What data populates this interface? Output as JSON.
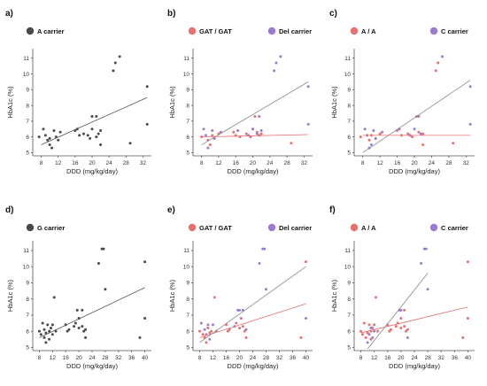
{
  "chart_data": [
    {
      "panel": "a)",
      "type": "scatter",
      "xlabel": "DDD (mg/kg/day)",
      "ylabel": "HbA1c (%)",
      "xlim": [
        6,
        34
      ],
      "ylim": [
        4.8,
        11.6
      ],
      "xticks": [
        8,
        12,
        16,
        20,
        24,
        28,
        32
      ],
      "yticks": [
        5,
        6,
        7,
        8,
        9,
        10,
        11
      ],
      "series": [
        {
          "name": "A carrier",
          "color": "#4a4a4a",
          "points": [
            [
              7.5,
              6.0
            ],
            [
              8.5,
              6.5
            ],
            [
              9,
              6.1
            ],
            [
              9.5,
              5.8
            ],
            [
              10,
              5.5
            ],
            [
              10,
              5.9
            ],
            [
              10.5,
              5.3
            ],
            [
              11,
              6.4
            ],
            [
              11.5,
              6.0
            ],
            [
              12,
              5.8
            ],
            [
              12.5,
              6.3
            ],
            [
              16,
              6.4
            ],
            [
              16.5,
              6.5
            ],
            [
              17,
              6.1
            ],
            [
              18,
              6.2
            ],
            [
              19,
              6.1
            ],
            [
              19.5,
              5.9
            ],
            [
              20,
              6.5
            ],
            [
              20,
              7.3
            ],
            [
              21,
              6.0
            ],
            [
              21,
              7.3
            ],
            [
              21.5,
              6.2
            ],
            [
              22,
              6.4
            ],
            [
              22,
              5.5
            ],
            [
              25,
              10.2
            ],
            [
              25.5,
              10.7
            ],
            [
              26.5,
              11.1
            ],
            [
              29,
              5.6
            ],
            [
              33,
              9.2
            ],
            [
              33,
              6.8
            ]
          ],
          "trend": [
            [
              8,
              5.5
            ],
            [
              33,
              8.5
            ]
          ],
          "trend_color": "#555555"
        }
      ]
    },
    {
      "panel": "b)",
      "type": "scatter",
      "xlabel": "DDD (mg/kg/day)",
      "ylabel": "HbA1c (%)",
      "xlim": [
        6,
        34
      ],
      "ylim": [
        4.8,
        11.6
      ],
      "xticks": [
        8,
        12,
        16,
        20,
        24,
        28,
        32
      ],
      "yticks": [
        5,
        6,
        7,
        8,
        9,
        10,
        11
      ],
      "series": [
        {
          "name": "GAT / GAT",
          "color": "#e8706f",
          "points": [
            [
              8,
              6.0
            ],
            [
              9.5,
              5.8
            ],
            [
              10,
              5.5
            ],
            [
              10.5,
              6.1
            ],
            [
              11,
              5.9
            ],
            [
              12,
              6.2
            ],
            [
              15.5,
              6.3
            ],
            [
              16,
              6.1
            ],
            [
              17,
              6.0
            ],
            [
              18.5,
              6.2
            ],
            [
              19.5,
              6.0
            ],
            [
              20,
              6.5
            ],
            [
              20.5,
              7.3
            ],
            [
              21,
              6.3
            ],
            [
              21.5,
              6.1
            ],
            [
              22,
              6.2
            ],
            [
              29,
              5.6
            ]
          ],
          "trend": [
            [
              8,
              6.0
            ],
            [
              33,
              6.15
            ]
          ],
          "trend_color": "#e8706f"
        },
        {
          "name": "Del carrier",
          "color": "#9b7ad2",
          "points": [
            [
              8.5,
              6.5
            ],
            [
              9,
              6.1
            ],
            [
              9.5,
              5.3
            ],
            [
              10.5,
              6.4
            ],
            [
              11,
              5.9
            ],
            [
              12.5,
              6.3
            ],
            [
              16.5,
              6.4
            ],
            [
              19,
              6.1
            ],
            [
              20,
              6.5
            ],
            [
              21,
              6.2
            ],
            [
              21.5,
              7.3
            ],
            [
              22,
              6.4
            ],
            [
              25,
              10.2
            ],
            [
              25.5,
              10.7
            ],
            [
              26.5,
              11.1
            ],
            [
              33,
              9.2
            ],
            [
              33,
              6.8
            ]
          ],
          "trend": [
            [
              8,
              5.5
            ],
            [
              33,
              9.5
            ]
          ],
          "trend_color": "#888888"
        }
      ]
    },
    {
      "panel": "c)",
      "type": "scatter",
      "xlabel": "DDD (mg/kg/day)",
      "ylabel": "HbA1c (%)",
      "xlim": [
        6,
        34
      ],
      "ylim": [
        4.8,
        11.6
      ],
      "xticks": [
        8,
        12,
        16,
        20,
        24,
        28,
        32
      ],
      "yticks": [
        5,
        6,
        7,
        8,
        9,
        10,
        11
      ],
      "series": [
        {
          "name": "A / A",
          "color": "#e8706f",
          "points": [
            [
              7.5,
              6.0
            ],
            [
              9.5,
              5.8
            ],
            [
              10,
              6.1
            ],
            [
              11,
              5.9
            ],
            [
              12,
              6.2
            ],
            [
              16,
              6.4
            ],
            [
              17,
              6.1
            ],
            [
              18.5,
              6.2
            ],
            [
              19.5,
              6.0
            ],
            [
              20.5,
              7.3
            ],
            [
              21,
              6.3
            ],
            [
              22,
              6.2
            ],
            [
              22,
              5.5
            ],
            [
              25,
              10.2
            ],
            [
              25.5,
              10.7
            ],
            [
              29,
              5.6
            ]
          ],
          "trend": [
            [
              8,
              6.1
            ],
            [
              33,
              6.1
            ]
          ],
          "trend_color": "#e8706f"
        },
        {
          "name": "C carrier",
          "color": "#9b7ad2",
          "points": [
            [
              8.5,
              6.5
            ],
            [
              9,
              6.1
            ],
            [
              9.5,
              5.3
            ],
            [
              10,
              5.5
            ],
            [
              10.5,
              6.4
            ],
            [
              11,
              5.9
            ],
            [
              12.5,
              6.3
            ],
            [
              16.5,
              6.5
            ],
            [
              19,
              6.1
            ],
            [
              20,
              6.5
            ],
            [
              21,
              7.3
            ],
            [
              21.5,
              6.2
            ],
            [
              26.5,
              11.1
            ],
            [
              33,
              9.2
            ],
            [
              33,
              6.8
            ]
          ],
          "trend": [
            [
              8,
              5.0
            ],
            [
              33,
              9.6
            ]
          ],
          "trend_color": "#888888"
        }
      ]
    },
    {
      "panel": "d)",
      "type": "scatter",
      "xlabel": "DDD (mg/kg/day)",
      "ylabel": "HbA1c (%)",
      "xlim": [
        6,
        42
      ],
      "ylim": [
        4.8,
        11.6
      ],
      "xticks": [
        8,
        12,
        16,
        20,
        24,
        28,
        32,
        36,
        40
      ],
      "yticks": [
        5,
        6,
        7,
        8,
        9,
        10,
        11
      ],
      "series": [
        {
          "name": "G carrier",
          "color": "#4a4a4a",
          "points": [
            [
              8,
              6.0
            ],
            [
              8.5,
              5.8
            ],
            [
              9,
              6.5
            ],
            [
              9.5,
              6.1
            ],
            [
              9.5,
              5.6
            ],
            [
              10,
              5.9
            ],
            [
              10,
              5.3
            ],
            [
              10.5,
              6.4
            ],
            [
              11,
              6.0
            ],
            [
              11,
              5.5
            ],
            [
              11.5,
              6.2
            ],
            [
              12,
              5.8
            ],
            [
              12,
              6.4
            ],
            [
              12.5,
              8.1
            ],
            [
              13,
              6.0
            ],
            [
              16,
              6.4
            ],
            [
              16.5,
              6.0
            ],
            [
              17,
              6.1
            ],
            [
              18.5,
              6.3
            ],
            [
              19,
              6.5
            ],
            [
              19.5,
              7.3
            ],
            [
              20,
              6.2
            ],
            [
              20,
              6.8
            ],
            [
              21,
              6.3
            ],
            [
              21,
              7.3
            ],
            [
              21.5,
              6.0
            ],
            [
              22,
              5.6
            ],
            [
              22,
              6.1
            ],
            [
              26,
              10.2
            ],
            [
              27,
              11.1
            ],
            [
              27.5,
              11.1
            ],
            [
              28,
              8.6
            ],
            [
              38.5,
              5.6
            ],
            [
              40,
              10.3
            ],
            [
              40,
              6.8
            ]
          ],
          "trend": [
            [
              8,
              5.6
            ],
            [
              40,
              8.7
            ]
          ],
          "trend_color": "#555555"
        }
      ]
    },
    {
      "panel": "e)",
      "type": "scatter",
      "xlabel": "DDD (mg/kg/day)",
      "ylabel": "HbA1c (%)",
      "xlim": [
        6,
        42
      ],
      "ylim": [
        4.8,
        11.6
      ],
      "xticks": [
        8,
        12,
        16,
        20,
        24,
        28,
        32,
        36,
        40
      ],
      "yticks": [
        5,
        6,
        7,
        8,
        9,
        10,
        11
      ],
      "series": [
        {
          "name": "GAT / GAT",
          "color": "#e8706f",
          "points": [
            [
              8,
              6.0
            ],
            [
              9,
              5.8
            ],
            [
              9.5,
              5.6
            ],
            [
              10,
              5.3
            ],
            [
              10.5,
              6.2
            ],
            [
              11,
              5.9
            ],
            [
              11.5,
              6.0
            ],
            [
              12.5,
              8.1
            ],
            [
              13,
              6.0
            ],
            [
              16,
              6.4
            ],
            [
              16.5,
              6.0
            ],
            [
              17,
              6.1
            ],
            [
              19,
              6.5
            ],
            [
              20,
              6.2
            ],
            [
              20.5,
              6.8
            ],
            [
              21,
              6.3
            ],
            [
              21.5,
              6.0
            ],
            [
              22,
              5.6
            ],
            [
              38.5,
              5.6
            ],
            [
              40,
              10.3
            ]
          ],
          "trend": [
            [
              8,
              5.6
            ],
            [
              40,
              7.7
            ]
          ],
          "trend_color": "#e8706f"
        },
        {
          "name": "Del carrier",
          "color": "#9b7ad2",
          "points": [
            [
              8.5,
              6.5
            ],
            [
              9.5,
              6.1
            ],
            [
              10,
              5.8
            ],
            [
              10.5,
              6.4
            ],
            [
              11,
              5.5
            ],
            [
              12,
              6.4
            ],
            [
              18.5,
              6.3
            ],
            [
              19.5,
              7.3
            ],
            [
              20,
              7.3
            ],
            [
              21,
              7.3
            ],
            [
              22,
              6.1
            ],
            [
              26,
              10.2
            ],
            [
              27,
              11.1
            ],
            [
              27.5,
              11.1
            ],
            [
              28,
              8.6
            ],
            [
              40,
              6.8
            ]
          ],
          "trend": [
            [
              8,
              5.3
            ],
            [
              40,
              10.0
            ]
          ],
          "trend_color": "#888888"
        }
      ]
    },
    {
      "panel": "f)",
      "type": "scatter",
      "xlabel": "DDD (mg/kg/day)",
      "ylabel": "HbA1c (%)",
      "xlim": [
        6,
        42
      ],
      "ylim": [
        4.8,
        11.6
      ],
      "xticks": [
        8,
        12,
        16,
        20,
        24,
        28,
        32,
        36,
        40
      ],
      "yticks": [
        5,
        6,
        7,
        8,
        9,
        10,
        11
      ],
      "series": [
        {
          "name": "A / A",
          "color": "#e8706f",
          "points": [
            [
              8,
              6.0
            ],
            [
              8.5,
              5.8
            ],
            [
              9,
              6.5
            ],
            [
              9.5,
              5.6
            ],
            [
              10,
              5.9
            ],
            [
              10.5,
              6.4
            ],
            [
              11,
              6.0
            ],
            [
              11,
              5.5
            ],
            [
              11.5,
              6.2
            ],
            [
              12,
              6.4
            ],
            [
              12.5,
              8.1
            ],
            [
              13,
              6.0
            ],
            [
              16,
              6.4
            ],
            [
              16.5,
              6.0
            ],
            [
              17,
              6.1
            ],
            [
              18.5,
              6.3
            ],
            [
              19,
              6.5
            ],
            [
              20,
              6.2
            ],
            [
              20,
              6.8
            ],
            [
              21,
              6.3
            ],
            [
              21,
              7.3
            ],
            [
              21.5,
              6.0
            ],
            [
              22,
              6.1
            ],
            [
              38.5,
              5.6
            ],
            [
              40,
              10.3
            ],
            [
              40,
              6.8
            ]
          ],
          "trend": [
            [
              8,
              5.9
            ],
            [
              40,
              7.5
            ]
          ],
          "trend_color": "#e8706f"
        },
        {
          "name": "C carrier",
          "color": "#9b7ad2",
          "points": [
            [
              10,
              5.3
            ],
            [
              10.5,
              5.8
            ],
            [
              11,
              6.2
            ],
            [
              11.5,
              5.6
            ],
            [
              12,
              6.0
            ],
            [
              19.5,
              7.3
            ],
            [
              20,
              7.3
            ],
            [
              22,
              5.6
            ],
            [
              26,
              10.2
            ],
            [
              27,
              11.1
            ],
            [
              27.5,
              11.1
            ],
            [
              28,
              8.6
            ]
          ],
          "trend": [
            [
              10,
              4.9
            ],
            [
              28,
              9.6
            ]
          ],
          "trend_color": "#888888"
        }
      ]
    }
  ]
}
